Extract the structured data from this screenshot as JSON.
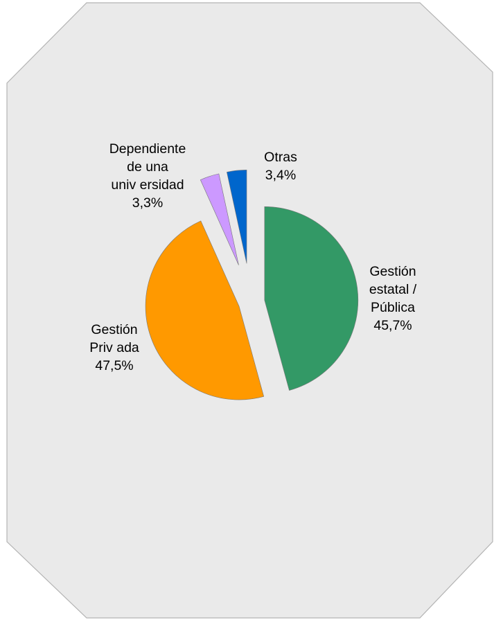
{
  "chart_data": {
    "type": "pie",
    "exploded": true,
    "slices": [
      {
        "name": "Gestión estatal / Pública",
        "label_lines": [
          "Gestión",
          "estatal /",
          "Pública"
        ],
        "value_label": "45,7%",
        "value": 45.7,
        "color": "#339966"
      },
      {
        "name": "Gestión Privada",
        "label_lines": [
          "Gestión",
          "Priv ada"
        ],
        "value_label": "47,5%",
        "value": 47.5,
        "color": "#ff9900"
      },
      {
        "name": "Dependiente de una universidad",
        "label_lines": [
          "Dependiente",
          "de una",
          "univ ersidad"
        ],
        "value_label": "3,3%",
        "value": 3.3,
        "color": "#cc99ff"
      },
      {
        "name": "Otras",
        "label_lines": [
          "Otras"
        ],
        "value_label": "3,4%",
        "value": 3.4,
        "color": "#0066cc"
      }
    ],
    "background_color": "#eaeaea",
    "border_color": "#b3b3b3"
  }
}
